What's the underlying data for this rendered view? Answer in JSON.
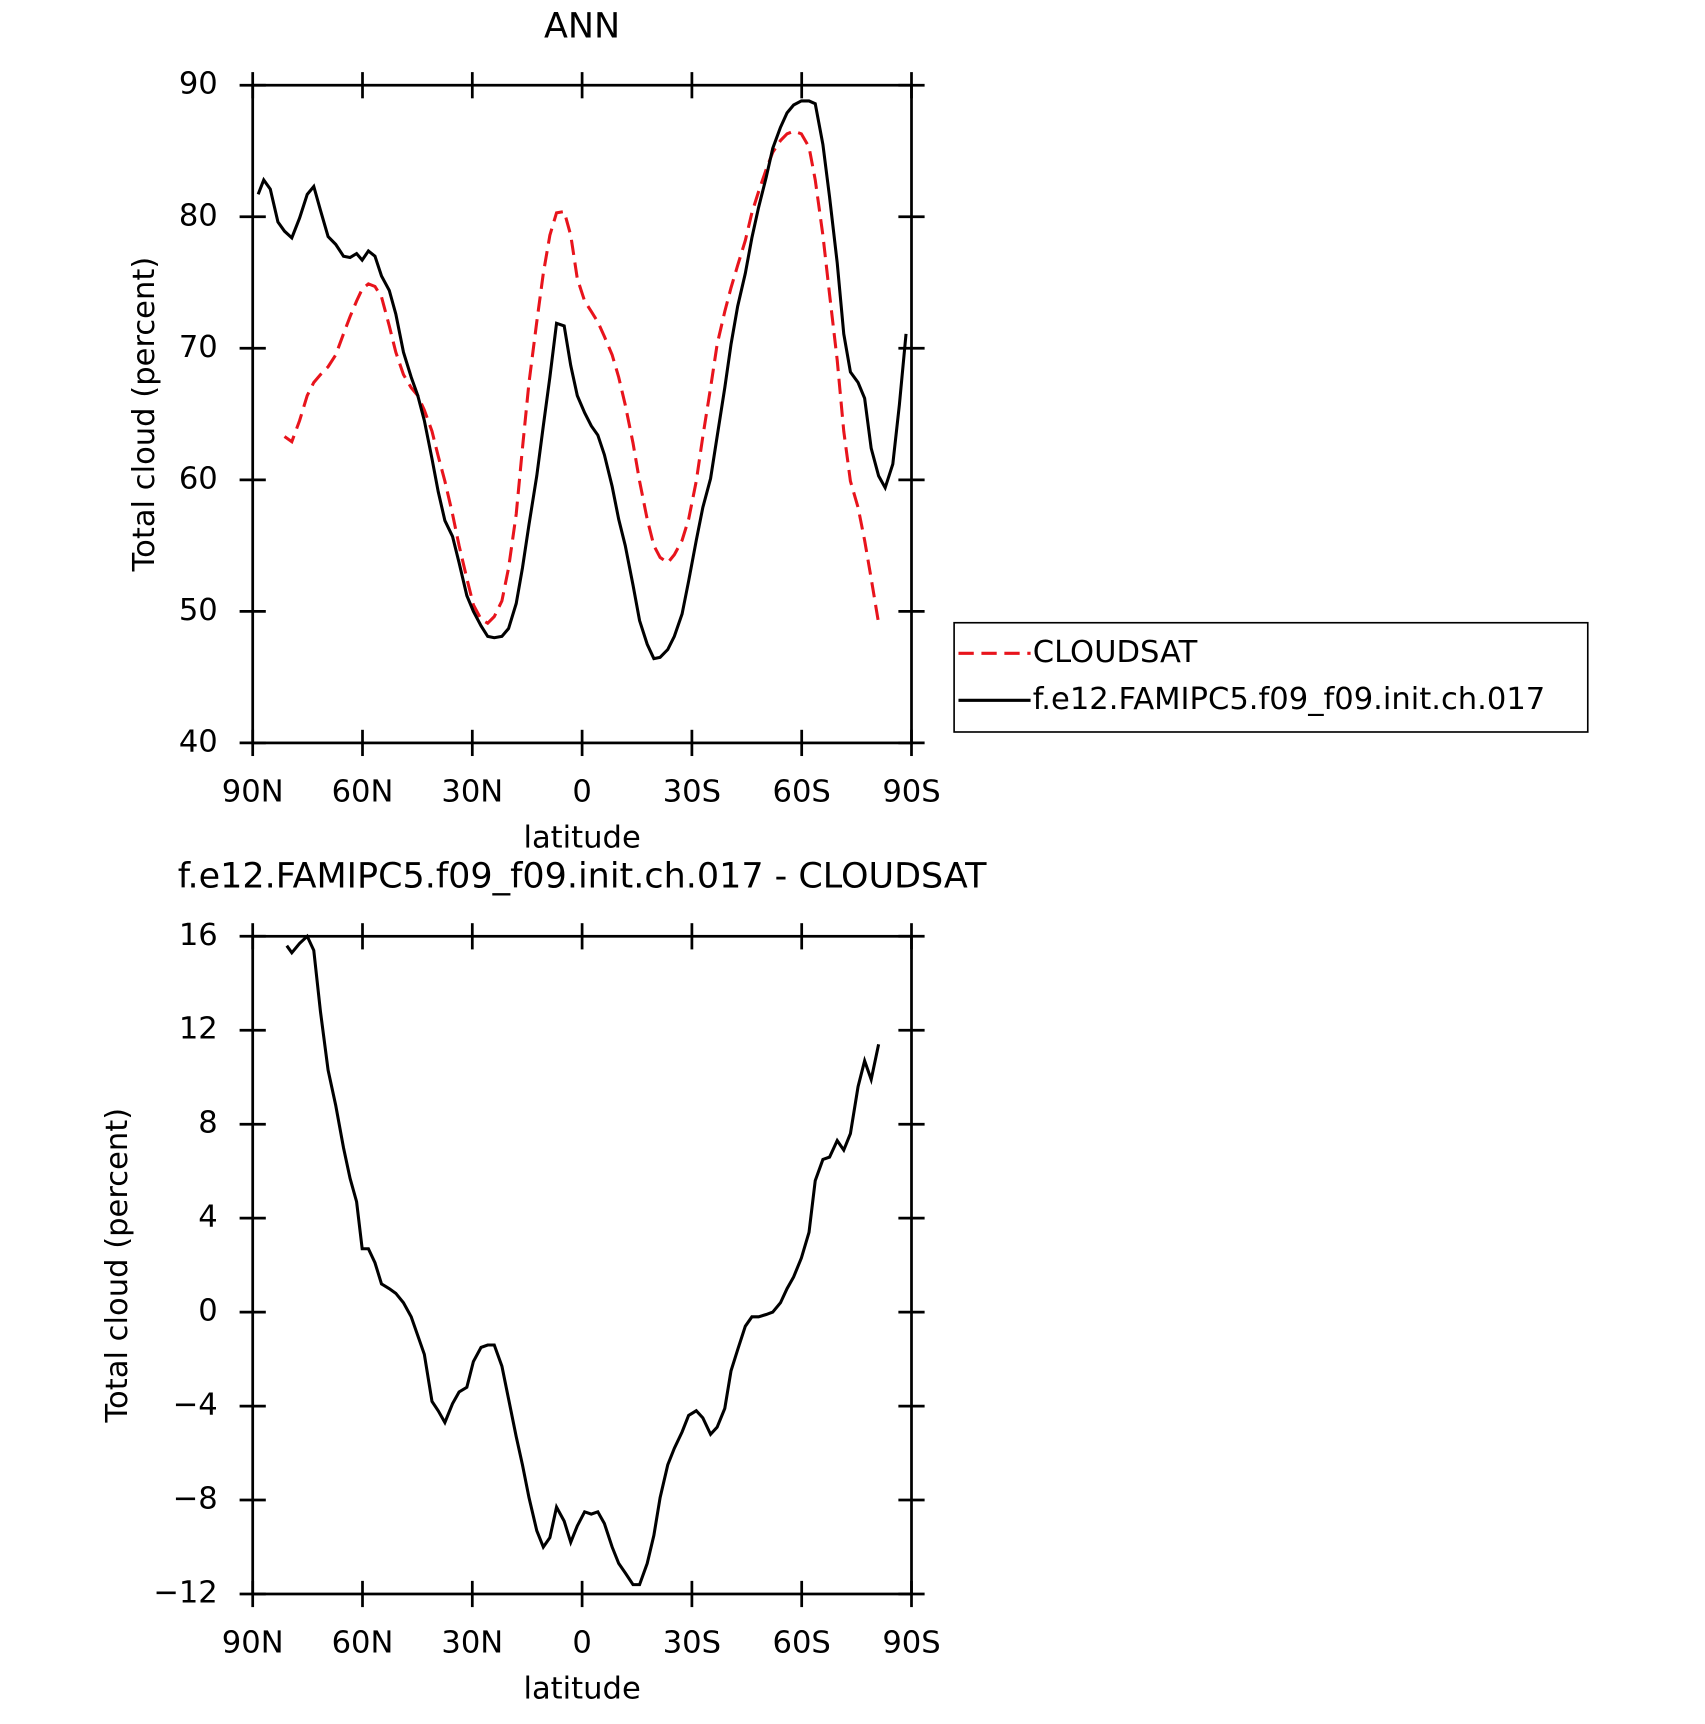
{
  "chart_data": [
    {
      "type": "line",
      "title": "ANN",
      "xlabel": "latitude",
      "ylabel": "Total cloud (percent)",
      "xlim": [
        90,
        -90
      ],
      "xticks": [
        {
          "value": 90,
          "label": "90N"
        },
        {
          "value": 60,
          "label": "60N"
        },
        {
          "value": 30,
          "label": "30N"
        },
        0,
        {
          "value": -30,
          "label": "30S"
        },
        {
          "value": -60,
          "label": "60S"
        },
        {
          "value": -90,
          "label": "90S"
        }
      ],
      "ylim": [
        40,
        90
      ],
      "yticks": [
        40,
        50,
        60,
        70,
        80,
        90
      ],
      "legend": "right",
      "x": [
        88.5,
        87.0,
        85.2,
        83.1,
        81.3,
        79.3,
        77.2,
        75.1,
        73.3,
        71.5,
        69.4,
        67.3,
        65.2,
        63.4,
        61.6,
        60.1,
        58.4,
        56.6,
        54.8,
        52.7,
        50.9,
        48.8,
        46.7,
        44.9,
        43.1,
        41.0,
        39.3,
        37.5,
        35.4,
        33.6,
        31.5,
        29.7,
        27.6,
        25.8,
        24.0,
        21.9,
        20.1,
        18.0,
        16.3,
        14.5,
        12.4,
        10.6,
        8.8,
        7.0,
        4.9,
        3.1,
        1.3,
        -0.7,
        -2.5,
        -4.3,
        -6.1,
        -8.2,
        -10.0,
        -11.8,
        -13.9,
        -15.7,
        -17.8,
        -19.6,
        -21.3,
        -23.4,
        -25.2,
        -27.3,
        -29.1,
        -31.2,
        -33.0,
        -35.1,
        -36.9,
        -39.0,
        -40.7,
        -42.5,
        -44.6,
        -46.4,
        -48.2,
        -50.3,
        -52.1,
        -54.2,
        -56.0,
        -57.8,
        -59.9,
        -62.0,
        -63.7,
        -65.8,
        -67.6,
        -69.7,
        -71.5,
        -73.3,
        -75.4,
        -77.2,
        -79.0,
        -81.0,
        -82.8,
        -84.9,
        -86.7,
        -88.5
      ],
      "series": [
        {
          "name": "CLOUDSAT",
          "color": "#e8141c",
          "dashed": true,
          "values": [
            null,
            null,
            null,
            null,
            63.3,
            62.9,
            64.5,
            66.4,
            67.4,
            68.0,
            68.6,
            69.5,
            71.1,
            72.4,
            73.6,
            74.5,
            74.9,
            74.7,
            73.9,
            71.7,
            69.7,
            68.0,
            67.0,
            66.4,
            65.3,
            63.7,
            61.8,
            59.9,
            57.4,
            55.0,
            52.5,
            50.5,
            49.4,
            49.1,
            49.6,
            50.8,
            53.3,
            57.4,
            62.4,
            67.4,
            72.0,
            75.7,
            78.6,
            80.3,
            80.4,
            78.6,
            75.3,
            73.6,
            72.8,
            72.0,
            70.9,
            69.5,
            67.8,
            65.7,
            62.8,
            59.9,
            57.0,
            55.0,
            54.1,
            53.7,
            54.3,
            55.4,
            57.0,
            59.9,
            63.3,
            67.0,
            70.3,
            72.8,
            74.6,
            76.3,
            78.2,
            80.3,
            81.9,
            83.6,
            84.9,
            85.8,
            86.3,
            86.5,
            86.3,
            85.3,
            82.8,
            78.6,
            74.1,
            69.1,
            63.7,
            59.9,
            57.9,
            55.4,
            52.5,
            49.1,
            null,
            null,
            null,
            null
          ]
        },
        {
          "name": "f.e12.FAMIPC5.f09_f09.init.ch.017",
          "color": "#000000",
          "dashed": false,
          "values": [
            81.7,
            82.8,
            82.1,
            79.6,
            78.9,
            78.4,
            79.9,
            81.7,
            82.3,
            80.5,
            78.5,
            77.9,
            77.0,
            76.9,
            77.2,
            76.7,
            77.4,
            77.0,
            75.5,
            74.4,
            72.6,
            69.7,
            67.8,
            66.4,
            64.5,
            61.6,
            59.1,
            56.9,
            55.7,
            53.7,
            51.2,
            50.0,
            48.9,
            48.1,
            48.0,
            48.1,
            48.7,
            50.6,
            53.3,
            56.6,
            60.3,
            64.1,
            67.8,
            71.9,
            71.7,
            68.7,
            66.4,
            65.1,
            64.1,
            63.4,
            61.9,
            59.5,
            57.0,
            55.0,
            52.0,
            49.3,
            47.5,
            46.4,
            46.5,
            47.1,
            48.1,
            49.8,
            52.3,
            55.4,
            57.9,
            60.1,
            63.3,
            67.0,
            70.3,
            73.2,
            75.7,
            78.4,
            80.7,
            83.0,
            85.2,
            86.8,
            87.9,
            88.5,
            88.8,
            88.8,
            88.6,
            85.5,
            81.5,
            76.5,
            71.1,
            68.2,
            67.4,
            66.2,
            62.4,
            60.3,
            59.4,
            61.2,
            65.7,
            71.1
          ]
        }
      ]
    },
    {
      "type": "line",
      "title": "f.e12.FAMIPC5.f09_f09.init.ch.017 - CLOUDSAT",
      "xlabel": "latitude",
      "ylabel": "Total cloud (percent)",
      "xlim": [
        90,
        -90
      ],
      "xticks": [
        {
          "value": 90,
          "label": "90N"
        },
        {
          "value": 60,
          "label": "60N"
        },
        {
          "value": 30,
          "label": "30N"
        },
        0,
        {
          "value": -30,
          "label": "30S"
        },
        {
          "value": -60,
          "label": "60S"
        },
        {
          "value": -90,
          "label": "90S"
        }
      ],
      "ylim": [
        -12,
        16
      ],
      "yticks": [
        {
          "value": -12,
          "label": "−12"
        },
        {
          "value": -8,
          "label": "−8"
        },
        {
          "value": -4,
          "label": "−4"
        },
        0,
        4,
        8,
        12,
        16
      ],
      "color": "#000000",
      "x": [
        80.7,
        79.3,
        77.2,
        75.1,
        73.3,
        71.5,
        69.4,
        67.3,
        65.2,
        63.4,
        61.6,
        60.1,
        58.4,
        56.6,
        54.8,
        52.7,
        50.9,
        48.8,
        46.7,
        44.9,
        43.1,
        41.0,
        39.3,
        37.5,
        35.4,
        33.6,
        31.5,
        29.7,
        27.6,
        25.8,
        24.0,
        21.9,
        20.1,
        18.0,
        16.3,
        14.5,
        12.4,
        10.6,
        8.8,
        7.0,
        4.9,
        3.1,
        1.3,
        -0.7,
        -2.5,
        -4.3,
        -6.1,
        -8.2,
        -10.0,
        -11.8,
        -13.9,
        -15.7,
        -17.8,
        -19.6,
        -21.3,
        -23.4,
        -25.2,
        -27.3,
        -29.1,
        -31.2,
        -33.0,
        -35.1,
        -36.9,
        -39.0,
        -40.7,
        -42.5,
        -44.6,
        -46.4,
        -48.2,
        -50.3,
        -52.1,
        -54.2,
        -56.0,
        -57.8,
        -59.9,
        -62.0,
        -63.7,
        -65.8,
        -67.6,
        -69.7,
        -71.5,
        -73.3,
        -75.4,
        -77.2,
        -79.0,
        -81.0
      ],
      "values": [
        15.6,
        15.3,
        15.7,
        16.0,
        15.4,
        12.8,
        10.3,
        8.8,
        7.0,
        5.7,
        4.7,
        2.7,
        2.7,
        2.1,
        1.2,
        1.0,
        0.8,
        0.4,
        -0.2,
        -1.0,
        -1.8,
        -3.8,
        -4.2,
        -4.7,
        -3.9,
        -3.4,
        -3.2,
        -2.1,
        -1.5,
        -1.4,
        -1.4,
        -2.3,
        -3.7,
        -5.3,
        -6.5,
        -7.9,
        -9.3,
        -10.0,
        -9.6,
        -8.3,
        -8.9,
        -9.8,
        -9.1,
        -8.5,
        -8.6,
        -8.5,
        -9.0,
        -10.0,
        -10.7,
        -11.1,
        -11.6,
        -11.6,
        -10.7,
        -9.5,
        -7.9,
        -6.5,
        -5.8,
        -5.1,
        -4.4,
        -4.2,
        -4.5,
        -5.2,
        -4.9,
        -4.1,
        -2.5,
        -1.6,
        -0.6,
        -0.2,
        -0.2,
        -0.1,
        0.0,
        0.4,
        1.0,
        1.5,
        2.3,
        3.4,
        5.6,
        6.5,
        6.6,
        7.3,
        6.9,
        7.6,
        9.6,
        10.7,
        9.9,
        11.4
      ]
    }
  ]
}
